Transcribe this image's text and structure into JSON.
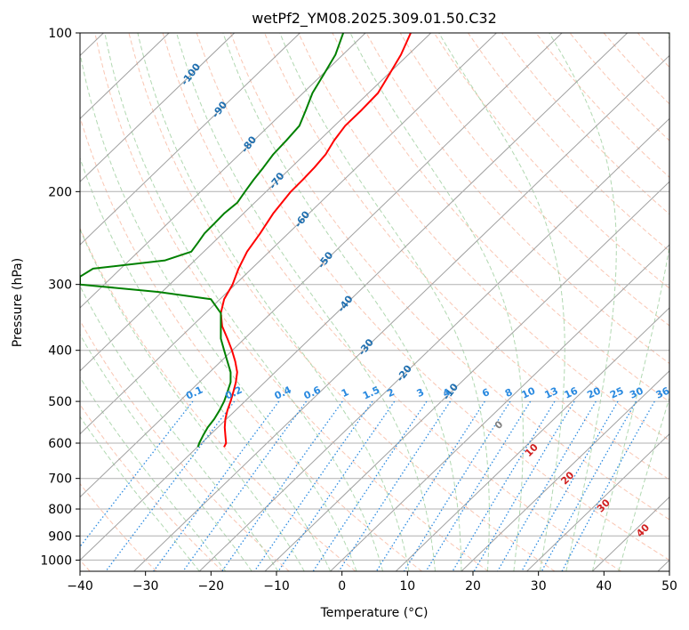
{
  "chart_data": {
    "type": "skew-t",
    "title": "wetPf2_YM08.2025.309.01.50.C32",
    "xlabel": "Temperature (°C)",
    "ylabel": "Pressure (hPa)",
    "xlim": [
      -40,
      50
    ],
    "ylim": [
      1050,
      100
    ],
    "x_ticks": [
      -40,
      -30,
      -20,
      -10,
      0,
      10,
      20,
      30,
      40,
      50
    ],
    "x_tick_labels": [
      "−40",
      "−30",
      "−20",
      "−10",
      "0",
      "10",
      "20",
      "30",
      "40",
      "50"
    ],
    "y_ticks": [
      100,
      200,
      300,
      400,
      500,
      600,
      700,
      800,
      900,
      1000
    ],
    "y_tick_labels": [
      "100",
      "200",
      "300",
      "400",
      "500",
      "600",
      "700",
      "800",
      "900",
      "1000"
    ],
    "colors": {
      "temperature": "#ff0000",
      "dewpoint": "#008000",
      "isotherm": "#a0a0a0",
      "isobar": "#b0b0b0",
      "dry_adiabat": "#f5a080",
      "moist_adiabat": "#90c890",
      "mixing_ratio": "#2a8ae0",
      "isotherm_label": "#1f6fb0",
      "lcl_label": "#d02020",
      "zero_label": "#808080"
    },
    "isotherm_labels": [
      "-100",
      "-90",
      "-80",
      "-70",
      "-60",
      "-50",
      "-40",
      "-30",
      "-20",
      "-10"
    ],
    "isotherm_label_values": [
      -100,
      -90,
      -80,
      -70,
      -60,
      -50,
      -40,
      -30,
      -20,
      -10
    ],
    "isotherm_label_pressures": [
      120,
      140,
      163,
      191,
      226,
      270,
      327,
      395,
      443,
      480
    ],
    "mixing_ratio_labels": [
      "0.1",
      "0.2",
      "0.4",
      "0.6",
      "1",
      "1.5",
      "2",
      "3",
      "4",
      "6",
      "8",
      "10",
      "13",
      "16",
      "20",
      "25",
      "30",
      "36"
    ],
    "mixing_ratio_values": [
      0.1,
      0.2,
      0.4,
      0.6,
      1,
      1.5,
      2,
      3,
      4,
      6,
      8,
      10,
      13,
      16,
      20,
      25,
      30,
      36
    ],
    "mixing_ratio_label_pressure": 500,
    "mixing_ratio_label_temps": [
      -22.5,
      -16.5,
      -9,
      -4.5,
      0.5,
      4.5,
      7.5,
      12,
      16,
      22,
      25.5,
      28.5,
      32,
      35,
      38.5,
      42,
      45,
      49
    ],
    "zero_label": "0",
    "zero_label_temp": 24,
    "zero_label_pressure": 555,
    "lcl_labels": [
      "10",
      "20",
      "30",
      "40"
    ],
    "lcl_label_temps": [
      29,
      34.5,
      40,
      46
    ],
    "lcl_label_pressures": [
      620,
      700,
      790,
      880
    ],
    "temperature_profile": {
      "name": "Temperature",
      "pressure": [
        100,
        110,
        120,
        130,
        140,
        150,
        160,
        170,
        180,
        190,
        200,
        220,
        240,
        260,
        280,
        300,
        320,
        340,
        360,
        380,
        400,
        420,
        440,
        460,
        480,
        500,
        520,
        540,
        560,
        580,
        600,
        610
      ],
      "skewed_x": [
        10.5,
        9.0,
        7.2,
        5.5,
        3.0,
        0.5,
        -1.2,
        -2.5,
        -4.2,
        -6.0,
        -7.8,
        -10.5,
        -12.5,
        -14.5,
        -15.8,
        -16.7,
        -18.0,
        -18.5,
        -18.3,
        -17.5,
        -16.8,
        -16.3,
        -16.0,
        -16.2,
        -16.6,
        -17.0,
        -17.5,
        -17.8,
        -17.9,
        -17.8,
        -17.7,
        -18.0
      ]
    },
    "dewpoint_profile": {
      "name": "Dew point",
      "pressure": [
        100,
        110,
        120,
        130,
        140,
        150,
        160,
        170,
        180,
        190,
        200,
        210,
        220,
        230,
        240,
        250,
        260,
        270,
        280,
        290,
        300,
        310,
        320,
        340,
        360,
        380,
        400,
        420,
        440,
        460,
        480,
        500,
        520,
        540,
        560,
        580,
        600,
        610
      ],
      "skewed_x": [
        0.2,
        -1.0,
        -2.8,
        -4.5,
        -5.5,
        -6.5,
        -8.5,
        -10.5,
        -12.0,
        -13.5,
        -14.8,
        -16.0,
        -18.0,
        -19.5,
        -21.0,
        -22.0,
        -23.0,
        -27.0,
        -38.0,
        -40.0,
        -40.0,
        -28.0,
        -20.0,
        -18.5,
        -18.5,
        -18.5,
        -18.0,
        -17.5,
        -17.0,
        -17.0,
        -17.5,
        -18.0,
        -18.7,
        -19.5,
        -20.5,
        -21.2,
        -21.8,
        -22.0
      ]
    }
  }
}
